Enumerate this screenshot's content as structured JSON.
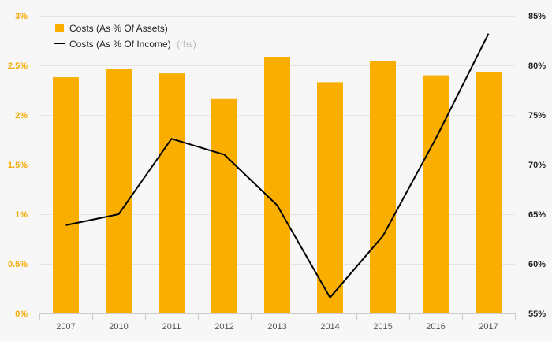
{
  "chart_data": {
    "type": "bar",
    "categories": [
      "2007",
      "2010",
      "2011",
      "2012",
      "2013",
      "2014",
      "2015",
      "2016",
      "2017"
    ],
    "series": [
      {
        "name": "Costs (As % Of Assets)",
        "type": "bar",
        "axis": "left",
        "color": "#f9ae00",
        "values": [
          2.38,
          2.46,
          2.42,
          2.16,
          2.58,
          2.33,
          2.54,
          2.4,
          2.43
        ]
      },
      {
        "name": "Costs (As % Of Income)",
        "type": "line",
        "axis": "right",
        "color": "#000000",
        "values": [
          63.9,
          65.0,
          72.6,
          71.0,
          65.9,
          56.6,
          62.8,
          72.6,
          83.2
        ]
      }
    ],
    "legend": {
      "placement": "top-left",
      "items": [
        {
          "label": "Costs (As % Of Assets)",
          "suffix": ""
        },
        {
          "label": "Costs (As % Of Income)",
          "suffix": "(rhs)"
        }
      ]
    },
    "y_left": {
      "min": 0,
      "max": 3,
      "ticks": [
        0,
        0.5,
        1,
        1.5,
        2,
        2.5,
        3
      ],
      "tick_labels": [
        "0%",
        "0.5%",
        "1%",
        "1.5%",
        "2%",
        "2.5%",
        "3%"
      ],
      "color": "#f5a900"
    },
    "y_right": {
      "min": 55,
      "max": 85,
      "ticks": [
        55,
        60,
        65,
        70,
        75,
        80,
        85
      ],
      "tick_labels": [
        "55%",
        "60%",
        "65%",
        "70%",
        "75%",
        "80%",
        "85%"
      ],
      "color": "#222222"
    },
    "grid": true,
    "grid_color": "#e4e4e4"
  }
}
